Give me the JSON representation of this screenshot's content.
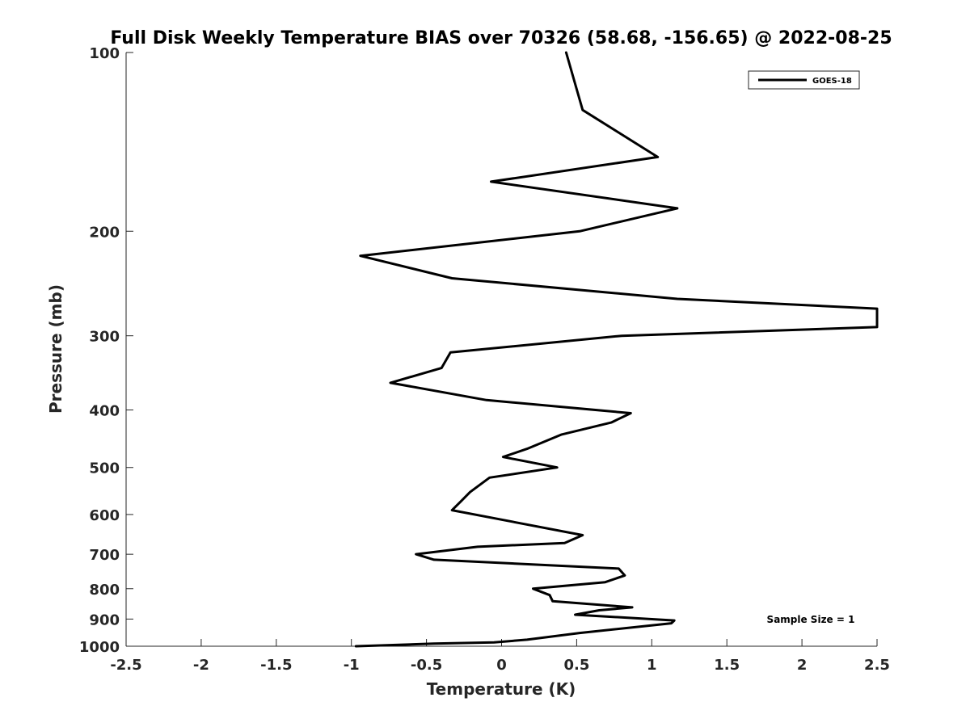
{
  "chart_data": {
    "type": "line",
    "title": "Full Disk Weekly Temperature BIAS over 70326 (58.68, -156.65) @ 2022-08-25",
    "xlabel": "Temperature (K)",
    "ylabel": "Pressure (mb)",
    "xlim": [
      -2.5,
      2.5
    ],
    "ylim": [
      100,
      1000
    ],
    "y_scale": "log",
    "y_reversed": true,
    "x_ticks": [
      "-2.5",
      "-2",
      "-1.5",
      "-1",
      "-0.5",
      "0",
      "0.5",
      "1",
      "1.5",
      "2",
      "2.5"
    ],
    "y_ticks": [
      "100",
      "200",
      "300",
      "400",
      "500",
      "600",
      "700",
      "800",
      "900",
      "1000"
    ],
    "grid": false,
    "legend_position": "top-right",
    "annotation": "Sample Size = 1",
    "series": [
      {
        "name": "GOES-18",
        "color": "#000000",
        "points": [
          [
            0.43,
            100
          ],
          [
            0.54,
            125
          ],
          [
            1.04,
            150
          ],
          [
            -0.07,
            165
          ],
          [
            1.17,
            183
          ],
          [
            0.52,
            200
          ],
          [
            -0.94,
            220
          ],
          [
            -0.33,
            240
          ],
          [
            1.17,
            260
          ],
          [
            2.5,
            270
          ],
          [
            2.5,
            290
          ],
          [
            0.8,
            300
          ],
          [
            -0.34,
            320
          ],
          [
            -0.4,
            340
          ],
          [
            -0.74,
            360
          ],
          [
            -0.1,
            385
          ],
          [
            0.86,
            405
          ],
          [
            0.73,
            420
          ],
          [
            0.4,
            440
          ],
          [
            0.17,
            465
          ],
          [
            0.01,
            480
          ],
          [
            0.37,
            500
          ],
          [
            -0.08,
            520
          ],
          [
            -0.21,
            550
          ],
          [
            -0.27,
            570
          ],
          [
            -0.33,
            590
          ],
          [
            0.54,
            650
          ],
          [
            0.42,
            670
          ],
          [
            -0.16,
            680
          ],
          [
            -0.57,
            700
          ],
          [
            -0.45,
            715
          ],
          [
            0.78,
            740
          ],
          [
            0.82,
            760
          ],
          [
            0.69,
            780
          ],
          [
            0.21,
            800
          ],
          [
            0.32,
            820
          ],
          [
            0.34,
            840
          ],
          [
            0.87,
            860
          ],
          [
            0.65,
            870
          ],
          [
            0.49,
            885
          ],
          [
            1.15,
            905
          ],
          [
            1.13,
            915
          ],
          [
            0.52,
            950
          ],
          [
            0.17,
            975
          ],
          [
            -0.05,
            985
          ],
          [
            -0.45,
            990
          ],
          [
            -0.97,
            1000
          ]
        ]
      }
    ]
  }
}
